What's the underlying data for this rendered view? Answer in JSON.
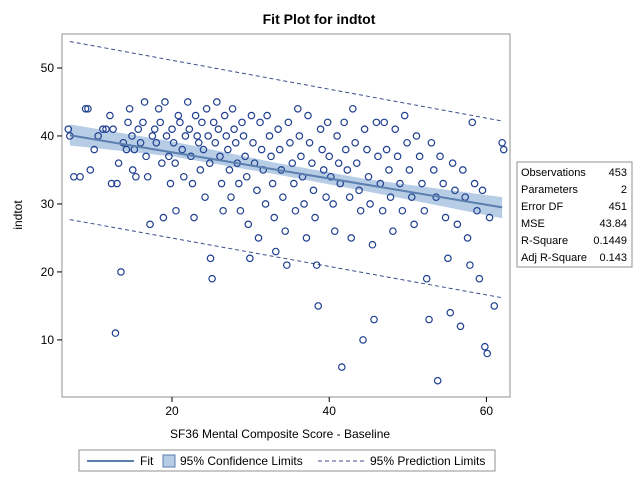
{
  "chart_data": {
    "type": "scatter",
    "title": "Fit Plot for indtot",
    "xlabel": "SF36 Mental Composite Score - Baseline",
    "ylabel": "indtot",
    "xlim": [
      6,
      63
    ],
    "ylim": [
      1.6,
      55
    ],
    "xticks": [
      20,
      40,
      60
    ],
    "yticks": [
      10,
      20,
      30,
      40,
      50
    ],
    "grid": false,
    "colors": {
      "marker": "#1f3f8f",
      "fit_line": "#5b7fae",
      "confidence_band": "#b7cde6",
      "prediction_line": "#3b4f8a",
      "frame": "#909090"
    },
    "series": [
      {
        "name": "Fit",
        "kind": "line",
        "x": [
          7,
          62
        ],
        "y": [
          40.1,
          29.5
        ]
      },
      {
        "name": "95% Confidence Limits",
        "kind": "band",
        "x": [
          7,
          20,
          33,
          45,
          62
        ],
        "lower": [
          38.6,
          37.0,
          34.4,
          31.8,
          27.9
        ],
        "upper": [
          41.7,
          39.2,
          36.1,
          33.6,
          31.0
        ]
      },
      {
        "name": "95% Prediction Limits",
        "kind": "dashed",
        "x": [
          7,
          62
        ],
        "upper": [
          53.9,
          42.2
        ],
        "lower": [
          27.7,
          16.2
        ]
      },
      {
        "name": "indtot",
        "kind": "points",
        "points": [
          [
            6.8,
            41
          ],
          [
            7.0,
            40
          ],
          [
            7.5,
            34
          ],
          [
            8.3,
            34
          ],
          [
            9.0,
            44
          ],
          [
            9.3,
            44
          ],
          [
            9.6,
            35
          ],
          [
            10.1,
            38
          ],
          [
            10.6,
            40
          ],
          [
            11.2,
            41
          ],
          [
            11.6,
            41
          ],
          [
            12.1,
            43
          ],
          [
            12.3,
            33
          ],
          [
            12.5,
            41
          ],
          [
            12.8,
            11
          ],
          [
            13.0,
            33
          ],
          [
            13.2,
            36
          ],
          [
            13.5,
            20
          ],
          [
            13.8,
            39
          ],
          [
            14.2,
            38
          ],
          [
            14.4,
            42
          ],
          [
            14.6,
            44
          ],
          [
            14.9,
            40
          ],
          [
            15.0,
            35
          ],
          [
            15.2,
            38
          ],
          [
            15.4,
            34
          ],
          [
            15.7,
            41
          ],
          [
            16.0,
            39
          ],
          [
            16.3,
            42
          ],
          [
            16.5,
            45
          ],
          [
            16.7,
            37
          ],
          [
            16.9,
            34
          ],
          [
            17.2,
            27
          ],
          [
            17.5,
            40
          ],
          [
            17.8,
            41
          ],
          [
            18.0,
            39
          ],
          [
            18.3,
            44
          ],
          [
            18.5,
            42
          ],
          [
            18.7,
            36
          ],
          [
            18.9,
            28
          ],
          [
            19.1,
            45
          ],
          [
            19.3,
            40
          ],
          [
            19.6,
            37
          ],
          [
            19.8,
            33
          ],
          [
            20.0,
            41
          ],
          [
            20.2,
            39
          ],
          [
            20.4,
            36
          ],
          [
            20.5,
            29
          ],
          [
            20.8,
            43
          ],
          [
            21.0,
            42
          ],
          [
            21.3,
            38
          ],
          [
            21.5,
            34
          ],
          [
            21.7,
            40
          ],
          [
            22.0,
            45
          ],
          [
            22.2,
            41
          ],
          [
            22.4,
            37
          ],
          [
            22.6,
            33
          ],
          [
            22.8,
            28
          ],
          [
            23.0,
            43
          ],
          [
            23.2,
            40
          ],
          [
            23.4,
            39
          ],
          [
            23.6,
            35
          ],
          [
            23.8,
            42
          ],
          [
            24.0,
            38
          ],
          [
            24.2,
            31
          ],
          [
            24.4,
            44
          ],
          [
            24.6,
            40
          ],
          [
            24.8,
            36
          ],
          [
            24.9,
            22
          ],
          [
            25.1,
            19
          ],
          [
            25.3,
            42
          ],
          [
            25.5,
            39
          ],
          [
            25.7,
            45
          ],
          [
            25.9,
            41
          ],
          [
            26.1,
            37
          ],
          [
            26.3,
            33
          ],
          [
            26.5,
            29
          ],
          [
            26.7,
            43
          ],
          [
            26.9,
            40
          ],
          [
            27.1,
            38
          ],
          [
            27.3,
            35
          ],
          [
            27.5,
            31
          ],
          [
            27.7,
            44
          ],
          [
            27.9,
            41
          ],
          [
            28.1,
            39
          ],
          [
            28.3,
            36
          ],
          [
            28.5,
            33
          ],
          [
            28.7,
            29
          ],
          [
            28.9,
            42
          ],
          [
            29.1,
            40
          ],
          [
            29.3,
            37
          ],
          [
            29.5,
            34
          ],
          [
            29.7,
            27
          ],
          [
            29.9,
            22
          ],
          [
            30.1,
            43
          ],
          [
            30.3,
            39
          ],
          [
            30.5,
            36
          ],
          [
            30.8,
            32
          ],
          [
            31.0,
            25
          ],
          [
            31.2,
            42
          ],
          [
            31.4,
            38
          ],
          [
            31.6,
            35
          ],
          [
            31.9,
            30
          ],
          [
            32.1,
            43
          ],
          [
            32.4,
            40
          ],
          [
            32.6,
            37
          ],
          [
            32.8,
            33
          ],
          [
            33.0,
            28
          ],
          [
            33.2,
            23
          ],
          [
            33.5,
            41
          ],
          [
            33.7,
            38
          ],
          [
            33.9,
            35
          ],
          [
            34.1,
            31
          ],
          [
            34.4,
            26
          ],
          [
            34.6,
            21
          ],
          [
            34.8,
            42
          ],
          [
            35.0,
            39
          ],
          [
            35.3,
            36
          ],
          [
            35.5,
            33
          ],
          [
            35.7,
            29
          ],
          [
            36.0,
            44
          ],
          [
            36.2,
            40
          ],
          [
            36.4,
            37
          ],
          [
            36.6,
            34
          ],
          [
            36.8,
            30
          ],
          [
            37.1,
            25
          ],
          [
            37.3,
            43
          ],
          [
            37.5,
            39
          ],
          [
            37.8,
            36
          ],
          [
            38.0,
            32
          ],
          [
            38.2,
            28
          ],
          [
            38.4,
            21
          ],
          [
            38.6,
            15
          ],
          [
            38.9,
            41
          ],
          [
            39.1,
            38
          ],
          [
            39.3,
            35
          ],
          [
            39.6,
            31
          ],
          [
            39.8,
            42
          ],
          [
            40.0,
            37
          ],
          [
            40.2,
            34
          ],
          [
            40.5,
            30
          ],
          [
            40.7,
            26
          ],
          [
            41.0,
            40
          ],
          [
            41.2,
            36
          ],
          [
            41.4,
            33
          ],
          [
            41.6,
            6
          ],
          [
            41.9,
            42
          ],
          [
            42.1,
            38
          ],
          [
            42.3,
            35
          ],
          [
            42.6,
            31
          ],
          [
            42.8,
            25
          ],
          [
            43.0,
            44
          ],
          [
            43.3,
            39
          ],
          [
            43.5,
            36
          ],
          [
            43.8,
            32
          ],
          [
            44.0,
            29
          ],
          [
            44.3,
            10
          ],
          [
            44.5,
            41
          ],
          [
            44.8,
            38
          ],
          [
            45.0,
            34
          ],
          [
            45.2,
            30
          ],
          [
            45.5,
            24
          ],
          [
            45.7,
            13
          ],
          [
            46.0,
            42
          ],
          [
            46.2,
            37
          ],
          [
            46.5,
            33
          ],
          [
            46.8,
            29
          ],
          [
            47.0,
            42
          ],
          [
            47.3,
            38
          ],
          [
            47.6,
            35
          ],
          [
            47.8,
            31
          ],
          [
            48.1,
            26
          ],
          [
            48.4,
            41
          ],
          [
            48.7,
            37
          ],
          [
            49.0,
            33
          ],
          [
            49.3,
            29
          ],
          [
            49.6,
            43
          ],
          [
            49.9,
            39
          ],
          [
            50.2,
            35
          ],
          [
            50.5,
            31
          ],
          [
            50.8,
            27
          ],
          [
            51.1,
            40
          ],
          [
            51.5,
            37
          ],
          [
            51.8,
            33
          ],
          [
            52.1,
            29
          ],
          [
            52.4,
            19
          ],
          [
            52.7,
            13
          ],
          [
            53.0,
            39
          ],
          [
            53.3,
            35
          ],
          [
            53.6,
            31
          ],
          [
            53.8,
            4
          ],
          [
            54.1,
            37
          ],
          [
            54.5,
            33
          ],
          [
            54.8,
            28
          ],
          [
            55.1,
            22
          ],
          [
            55.4,
            14
          ],
          [
            55.7,
            36
          ],
          [
            56.0,
            32
          ],
          [
            56.3,
            27
          ],
          [
            56.7,
            12
          ],
          [
            57.0,
            35
          ],
          [
            57.3,
            31
          ],
          [
            57.6,
            25
          ],
          [
            57.9,
            21
          ],
          [
            58.2,
            42
          ],
          [
            58.5,
            33
          ],
          [
            58.8,
            29
          ],
          [
            59.1,
            19
          ],
          [
            59.5,
            32
          ],
          [
            59.8,
            9
          ],
          [
            60.1,
            8
          ],
          [
            60.4,
            28
          ],
          [
            61.0,
            15
          ],
          [
            62.0,
            39
          ],
          [
            62.2,
            38
          ]
        ]
      }
    ],
    "legend": {
      "placement": "bottom",
      "entries": [
        "Fit",
        "95% Confidence Limits",
        "95% Prediction Limits"
      ]
    },
    "fit_statistics": {
      "placement": "right",
      "rows": [
        {
          "label": "Observations",
          "value": "453"
        },
        {
          "label": "Parameters",
          "value": "2"
        },
        {
          "label": "Error DF",
          "value": "451"
        },
        {
          "label": "MSE",
          "value": "43.84"
        },
        {
          "label": "R-Square",
          "value": "0.1449"
        },
        {
          "label": "Adj R-Square",
          "value": "0.143"
        }
      ]
    }
  }
}
